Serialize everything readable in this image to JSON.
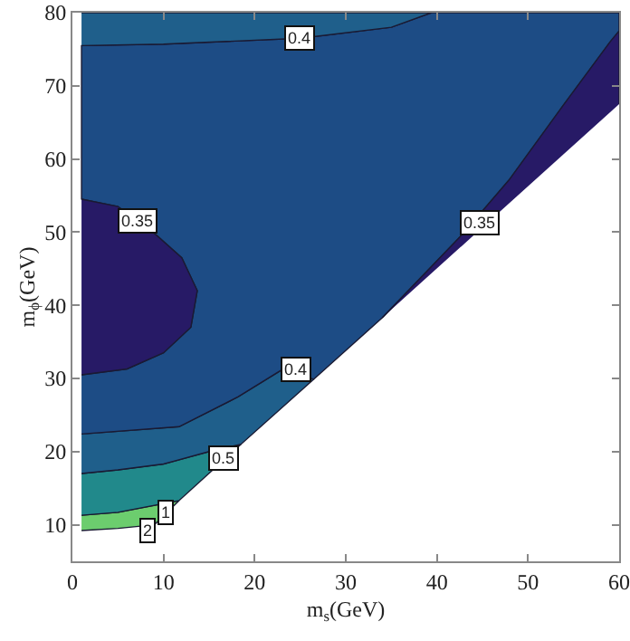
{
  "chart_data": {
    "type": "area",
    "xlabel": "m$_{s}$(GeV)",
    "ylabel": "m$_{ϕ}$(GeV)",
    "xlim": [
      0,
      60
    ],
    "ylim": [
      5,
      80
    ],
    "xticks": [
      0,
      10,
      20,
      30,
      40,
      50,
      60
    ],
    "yticks": [
      10,
      20,
      30,
      40,
      50,
      60,
      70,
      80
    ],
    "grid": false,
    "series": [
      {
        "color": "#6ccd6e",
        "x": [
          1,
          5,
          9,
          11.7,
          5,
          1
        ],
        "values": [
          9.2,
          9.5,
          10,
          13.3,
          11.7,
          11.3
        ]
      },
      {
        "color": "#21898b",
        "x": [
          1,
          5,
          11.7,
          18.5,
          15,
          10,
          5,
          1
        ],
        "values": [
          11.3,
          11.7,
          13.3,
          21,
          20,
          18.3,
          17.5,
          17
        ]
      },
      {
        "color": "#1f5f8b",
        "x": [
          1,
          5,
          10,
          15,
          18.5,
          26.5,
          23,
          18.2,
          11.7,
          1
        ],
        "values": [
          17,
          17.5,
          18.3,
          20,
          21,
          29.9,
          31.2,
          27.5,
          23.4,
          22.4
        ]
      },
      {
        "color": "#1d4c85",
        "x": [
          1,
          11.7,
          18.2,
          23,
          26.5,
          34,
          42.8,
          47.9,
          53.9,
          59,
          60,
          60,
          39.4,
          35,
          25,
          10,
          1,
          1,
          5,
          9.2,
          12,
          13.7,
          13,
          10,
          6,
          1
        ],
        "values": [
          22.4,
          23.4,
          27.5,
          31.2,
          29.9,
          38.3,
          49.7,
          57.1,
          67.4,
          76,
          77.5,
          80,
          80,
          78,
          76.5,
          75.7,
          75.5,
          54.5,
          53.5,
          49.6,
          46.5,
          42,
          37,
          33.5,
          31.3,
          30.5
        ]
      },
      {
        "color": "#271a66",
        "x": [
          1,
          5,
          9.2,
          12,
          13.7,
          13,
          10,
          6,
          1
        ],
        "values": [
          54.5,
          53.5,
          49.6,
          46.5,
          42,
          37,
          33.5,
          31.3,
          30.5
        ]
      },
      {
        "color": "#271a66",
        "x": [
          34,
          42.8,
          47.9,
          53.9,
          59,
          60,
          60
        ],
        "values": [
          38.3,
          49.7,
          57.1,
          67.4,
          76,
          77.5,
          67.5
        ]
      },
      {
        "color": "#1f5f8b",
        "x": [
          1,
          10,
          25,
          35,
          39.4,
          1
        ],
        "values": [
          75.5,
          75.7,
          76.5,
          78,
          80,
          80
        ]
      }
    ],
    "annotations": [
      {
        "text": "0.4",
        "x": 25,
        "y": 76.5
      },
      {
        "text": "0.35",
        "x": 7.2,
        "y": 51.6
      },
      {
        "text": "0.35",
        "x": 44.7,
        "y": 51.4
      },
      {
        "text": "0.4",
        "x": 24.5,
        "y": 31.2
      },
      {
        "text": "0.5",
        "x": 16.6,
        "y": 19
      },
      {
        "text": "1",
        "x": 10.2,
        "y": 11.8
      },
      {
        "text": "2",
        "x": 8.3,
        "y": 9.1
      }
    ]
  }
}
